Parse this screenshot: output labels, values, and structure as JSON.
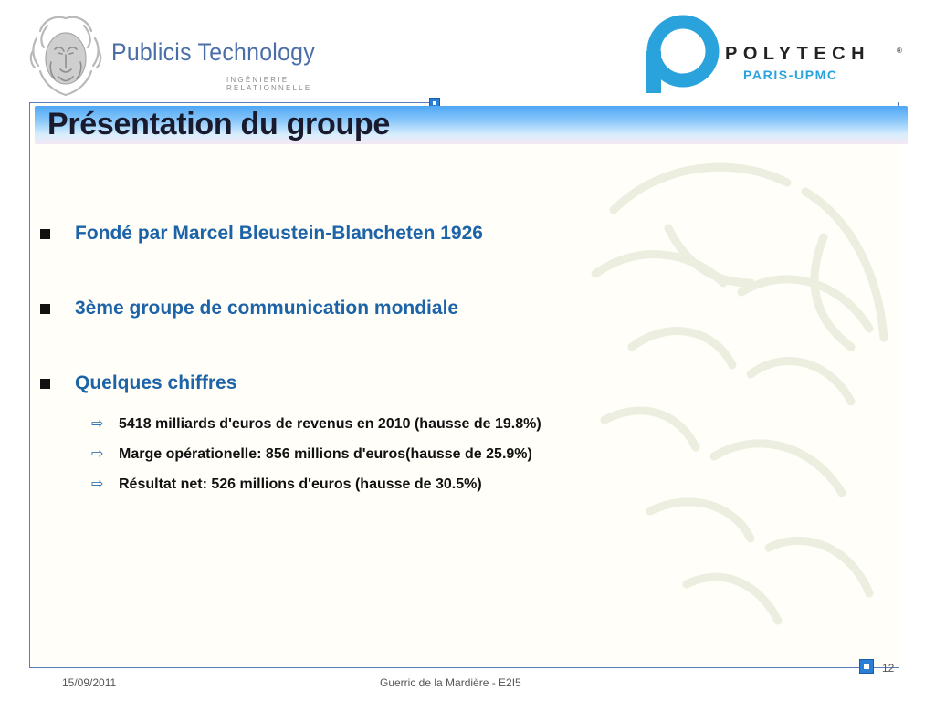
{
  "header": {
    "publicis": {
      "name": "Publicis Technology",
      "tagline": "INGÉNIERIE RELATIONNELLE",
      "icon": "lion-head-icon",
      "color": "#4a6ea8"
    },
    "polytech": {
      "name": "POLYTECH",
      "registered": "®",
      "subtitle": "PARIS-UPMC",
      "icon": "polytech-p-icon",
      "color": "#2aa2dc"
    }
  },
  "slide": {
    "title": "Présentation du groupe",
    "accent_color": "#1d63a8",
    "bullets": [
      {
        "text": "Fondé par Marcel Bleustein-Blancheten 1926"
      },
      {
        "text": "3ème groupe de communication mondiale"
      },
      {
        "text": "Quelques chiffres",
        "sub_items": [
          "5418 milliards d'euros de revenus en 2010 (hausse de 19.8%)",
          "Marge opérationelle: 856 millions d'euros(hausse de 25.9%)",
          "Résultat net: 526 millions d'euros (hausse de 30.5%)"
        ]
      }
    ]
  },
  "footer": {
    "date": "15/09/2011",
    "author": "Guerric de la Mardière - E2I5",
    "page_number": "12"
  }
}
